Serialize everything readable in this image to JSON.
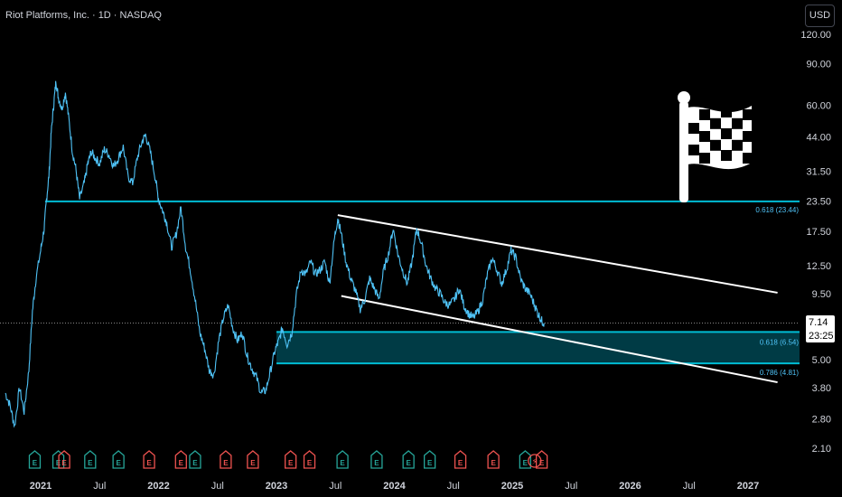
{
  "title": "Riot Platforms, Inc. · 1D · NASDAQ",
  "currency_button": "USD",
  "last_price": {
    "value": "7.14",
    "countdown": "23:25"
  },
  "colors": {
    "price_line": "#4fc3f7",
    "zone": "#00bcd4",
    "zone_fill": "#003b45",
    "channel": "#ffffff",
    "earnings_green": "#26a69a",
    "earnings_red": "#ef5350",
    "axis_text": "#d1d4dc"
  },
  "chart_data": {
    "type": "line",
    "title": "Riot Platforms, Inc. · 1D · NASDAQ",
    "y_scale": "log",
    "ylim": [
      1.9,
      135
    ],
    "y_ticks": [
      "120.00",
      "90.00",
      "60.00",
      "44.00",
      "31.50",
      "23.50",
      "17.50",
      "12.50",
      "9.50",
      "7.14",
      "5.00",
      "3.80",
      "2.80",
      "2.10"
    ],
    "y_tick_values": [
      120,
      90,
      60,
      44,
      31.5,
      23.5,
      17.5,
      12.5,
      9.5,
      7.14,
      5,
      3.8,
      2.8,
      2.1
    ],
    "x_ticks": [
      "2021",
      "Jul",
      "2022",
      "Jul",
      "2023",
      "Jul",
      "2024",
      "Jul",
      "2025",
      "Jul",
      "2026",
      "Jul",
      "2027"
    ],
    "x_tick_values": [
      2021.0,
      2021.5,
      2022.0,
      2022.5,
      2023.0,
      2023.5,
      2024.0,
      2024.5,
      2025.0,
      2025.5,
      2026.0,
      2026.5,
      2027.0
    ],
    "x_range": [
      2020.7,
      2027.3
    ],
    "series": [
      {
        "x": [
          2020.7,
          2020.74,
          2020.78,
          2020.82,
          2020.86,
          2020.9,
          2020.93,
          2020.96,
          2021.0,
          2021.03,
          2021.05,
          2021.07,
          2021.09,
          2021.11,
          2021.13,
          2021.15,
          2021.18,
          2021.21,
          2021.24,
          2021.27,
          2021.3,
          2021.33,
          2021.37,
          2021.4,
          2021.43,
          2021.46,
          2021.5,
          2021.54,
          2021.58,
          2021.62,
          2021.66,
          2021.7,
          2021.74,
          2021.78,
          2021.82,
          2021.86,
          2021.89,
          2021.93,
          2021.97,
          2022.0,
          2022.04,
          2022.07,
          2022.11,
          2022.15,
          2022.19,
          2022.23,
          2022.27,
          2022.31,
          2022.35,
          2022.39,
          2022.43,
          2022.47,
          2022.51,
          2022.55,
          2022.59,
          2022.63,
          2022.67,
          2022.71,
          2022.75,
          2022.79,
          2022.83,
          2022.87,
          2022.91,
          2022.95,
          2022.99,
          2023.02,
          2023.05,
          2023.09,
          2023.13,
          2023.17,
          2023.21,
          2023.25,
          2023.29,
          2023.33,
          2023.37,
          2023.41,
          2023.45,
          2023.49,
          2023.52,
          2023.55,
          2023.59,
          2023.63,
          2023.67,
          2023.71,
          2023.75,
          2023.79,
          2023.83,
          2023.87,
          2023.91,
          2023.95,
          2023.99,
          2024.03,
          2024.07,
          2024.11,
          2024.15,
          2024.19,
          2024.23,
          2024.27,
          2024.31,
          2024.35,
          2024.39,
          2024.43,
          2024.47,
          2024.51,
          2024.55,
          2024.59,
          2024.63,
          2024.67,
          2024.71,
          2024.75,
          2024.79,
          2024.83,
          2024.87,
          2024.91,
          2024.95,
          2024.99,
          2025.03,
          2025.07,
          2025.11,
          2025.15,
          2025.19,
          2025.22,
          2025.25,
          2025.27
        ],
        "y": [
          3.6,
          3.2,
          2.6,
          3.8,
          3.0,
          4.5,
          8.0,
          11.0,
          14.5,
          18.0,
          24.0,
          30.0,
          46.0,
          60.0,
          76.0,
          65.0,
          58.0,
          68.0,
          52.0,
          38.0,
          32.0,
          24.0,
          28.0,
          34.0,
          38.0,
          36.0,
          34.0,
          39.0,
          37.0,
          33.0,
          36.0,
          40.0,
          30.0,
          28.0,
          36.0,
          42.0,
          45.0,
          38.0,
          30.0,
          24.0,
          21.0,
          19.0,
          15.0,
          17.0,
          22.0,
          15.0,
          12.0,
          9.0,
          6.5,
          5.6,
          4.5,
          4.3,
          6.0,
          7.5,
          8.5,
          6.8,
          6.0,
          6.5,
          5.2,
          4.6,
          4.2,
          3.6,
          3.7,
          4.5,
          5.5,
          6.0,
          6.8,
          5.8,
          6.5,
          9.5,
          12.0,
          11.5,
          13.0,
          11.5,
          12.0,
          13.0,
          10.5,
          16.0,
          20.0,
          17.0,
          13.0,
          11.0,
          9.8,
          8.2,
          9.0,
          11.0,
          10.0,
          9.0,
          12.0,
          14.0,
          18.0,
          14.0,
          12.0,
          10.5,
          13.0,
          18.0,
          15.5,
          12.5,
          11.0,
          10.0,
          9.5,
          8.7,
          8.5,
          9.0,
          10.0,
          8.5,
          7.8,
          7.5,
          8.0,
          9.0,
          11.5,
          13.5,
          12.0,
          10.5,
          12.0,
          14.5,
          13.5,
          11.0,
          10.0,
          9.5,
          8.5,
          7.8,
          7.3,
          7.14
        ]
      }
    ],
    "horizontal_levels": [
      {
        "label": "0.618 (23.44)",
        "value": 23.44
      }
    ],
    "zone": {
      "top": 6.54,
      "bottom": 4.81,
      "start": 2023.0,
      "labels": [
        "0.618 (6.54)",
        "0.786 (4.81)"
      ]
    },
    "channel_lines": [
      {
        "from": [
          2023.52,
          20.5
        ],
        "to": [
          2027.25,
          9.6
        ]
      },
      {
        "from": [
          2023.55,
          9.3
        ],
        "to": [
          2027.25,
          4.0
        ]
      }
    ],
    "last_price_value": 7.14,
    "earnings_markers": [
      {
        "x": 2020.95,
        "kind": "E",
        "color": "green"
      },
      {
        "x": 2021.15,
        "kind": "E",
        "color": "green"
      },
      {
        "x": 2021.2,
        "kind": "E",
        "color": "red"
      },
      {
        "x": 2021.42,
        "kind": "E",
        "color": "green"
      },
      {
        "x": 2021.66,
        "kind": "E",
        "color": "green"
      },
      {
        "x": 2021.92,
        "kind": "E",
        "color": "red"
      },
      {
        "x": 2022.19,
        "kind": "E",
        "color": "red"
      },
      {
        "x": 2022.31,
        "kind": "E",
        "color": "green"
      },
      {
        "x": 2022.57,
        "kind": "E",
        "color": "red"
      },
      {
        "x": 2022.8,
        "kind": "E",
        "color": "red"
      },
      {
        "x": 2023.12,
        "kind": "E",
        "color": "red"
      },
      {
        "x": 2023.28,
        "kind": "E",
        "color": "red"
      },
      {
        "x": 2023.56,
        "kind": "E",
        "color": "green"
      },
      {
        "x": 2023.85,
        "kind": "E",
        "color": "green"
      },
      {
        "x": 2024.12,
        "kind": "E",
        "color": "green"
      },
      {
        "x": 2024.3,
        "kind": "E",
        "color": "green"
      },
      {
        "x": 2024.56,
        "kind": "E",
        "color": "red"
      },
      {
        "x": 2024.84,
        "kind": "E",
        "color": "red"
      },
      {
        "x": 2025.11,
        "kind": "E",
        "color": "green"
      },
      {
        "x": 2025.19,
        "kind": "split",
        "color": "red"
      },
      {
        "x": 2025.25,
        "kind": "E",
        "color": "red"
      }
    ]
  }
}
